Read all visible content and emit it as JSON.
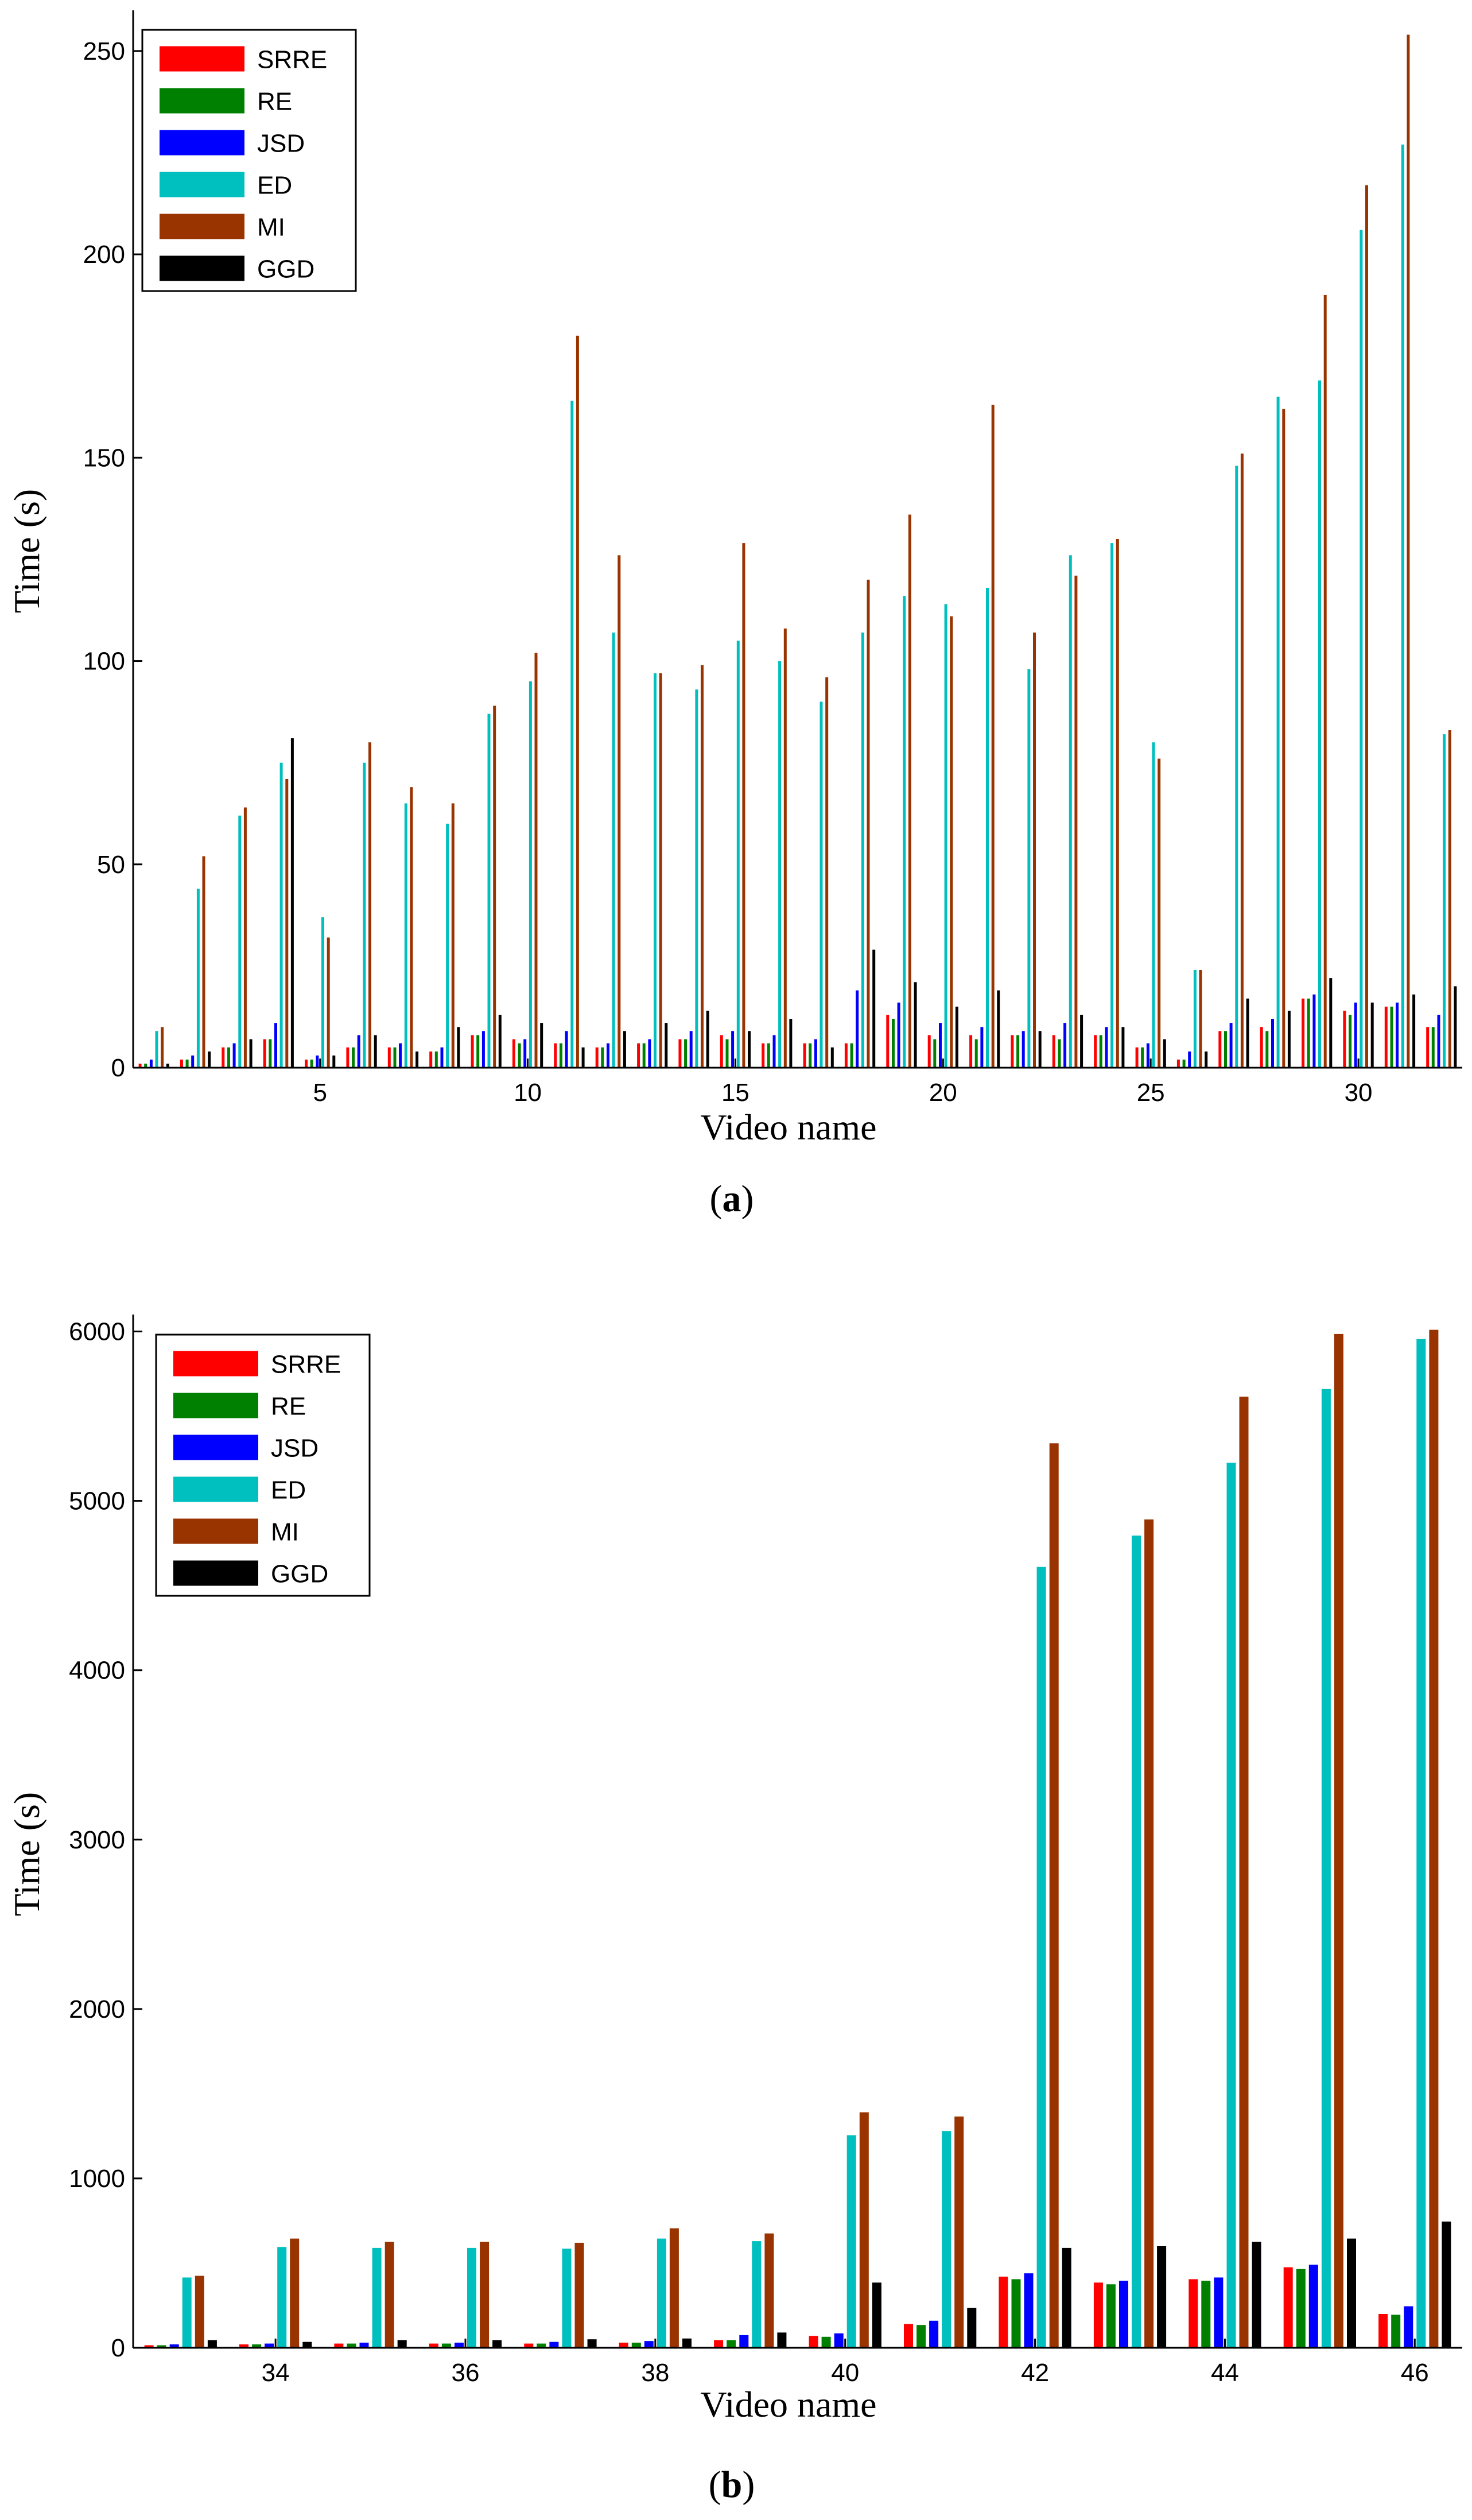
{
  "chart_data": [
    {
      "type": "bar",
      "panel_label": "a",
      "xlabel": "Video name",
      "ylabel": "Time (s)",
      "ylim": [
        0,
        260
      ],
      "yticks": [
        0,
        50,
        100,
        150,
        200,
        250
      ],
      "xticks": [
        5,
        10,
        15,
        20,
        25,
        30
      ],
      "legend_position": "top-left",
      "categories": [
        1,
        2,
        3,
        4,
        5,
        6,
        7,
        8,
        9,
        10,
        11,
        12,
        13,
        14,
        15,
        16,
        17,
        18,
        19,
        20,
        21,
        22,
        23,
        24,
        25,
        26,
        27,
        28,
        29,
        30,
        31,
        32
      ],
      "series": [
        {
          "name": "SRRE",
          "color": "#ff0000",
          "values": [
            1,
            2,
            5,
            7,
            2,
            5,
            5,
            4,
            8,
            7,
            6,
            5,
            6,
            7,
            8,
            6,
            6,
            6,
            13,
            8,
            8,
            8,
            8,
            8,
            5,
            2,
            9,
            10,
            17,
            14,
            15,
            10
          ]
        },
        {
          "name": "RE",
          "color": "#008000",
          "values": [
            1,
            2,
            5,
            7,
            2,
            5,
            5,
            4,
            8,
            6,
            6,
            5,
            6,
            7,
            7,
            6,
            6,
            6,
            12,
            7,
            7,
            8,
            7,
            8,
            5,
            2,
            9,
            9,
            17,
            13,
            15,
            10
          ]
        },
        {
          "name": "JSD",
          "color": "#0000ff",
          "values": [
            2,
            3,
            6,
            11,
            3,
            8,
            6,
            5,
            9,
            7,
            9,
            6,
            7,
            9,
            9,
            8,
            7,
            19,
            16,
            11,
            10,
            9,
            11,
            10,
            6,
            4,
            11,
            12,
            18,
            16,
            16,
            13
          ]
        },
        {
          "name": "ED",
          "color": "#00bfbf",
          "values": [
            9,
            44,
            62,
            75,
            37,
            75,
            65,
            60,
            87,
            95,
            164,
            107,
            97,
            93,
            105,
            100,
            90,
            107,
            116,
            114,
            118,
            98,
            126,
            129,
            80,
            24,
            148,
            165,
            169,
            206,
            227,
            82
          ]
        },
        {
          "name": "MI",
          "color": "#993300",
          "values": [
            10,
            52,
            64,
            71,
            32,
            80,
            69,
            65,
            89,
            102,
            180,
            126,
            97,
            99,
            129,
            108,
            96,
            120,
            136,
            111,
            163,
            107,
            121,
            130,
            76,
            24,
            151,
            162,
            190,
            217,
            254,
            83
          ]
        },
        {
          "name": "GGD",
          "color": "#000000",
          "values": [
            1,
            4,
            7,
            81,
            3,
            8,
            4,
            10,
            13,
            11,
            5,
            9,
            11,
            14,
            9,
            12,
            5,
            29,
            21,
            15,
            19,
            9,
            13,
            10,
            7,
            4,
            17,
            14,
            22,
            16,
            18,
            20
          ]
        }
      ]
    },
    {
      "type": "bar",
      "panel_label": "b",
      "xlabel": "Video name",
      "ylabel": "Time (s)",
      "ylim": [
        0,
        6100
      ],
      "yticks": [
        0,
        1000,
        2000,
        3000,
        4000,
        5000,
        6000
      ],
      "xticks": [
        34,
        36,
        38,
        40,
        42,
        44,
        46
      ],
      "legend_position": "top-left",
      "categories": [
        33,
        34,
        35,
        36,
        37,
        38,
        39,
        40,
        41,
        42,
        43,
        44,
        45,
        46
      ],
      "series": [
        {
          "name": "SRRE",
          "color": "#ff0000",
          "values": [
            15,
            20,
            25,
            25,
            25,
            30,
            45,
            70,
            140,
            420,
            385,
            405,
            475,
            200
          ]
        },
        {
          "name": "RE",
          "color": "#008000",
          "values": [
            15,
            20,
            25,
            25,
            25,
            30,
            45,
            65,
            135,
            405,
            375,
            395,
            465,
            195
          ]
        },
        {
          "name": "JSD",
          "color": "#0000ff",
          "values": [
            20,
            25,
            30,
            30,
            35,
            40,
            75,
            85,
            160,
            440,
            395,
            415,
            490,
            245
          ]
        },
        {
          "name": "ED",
          "color": "#00bfbf",
          "values": [
            415,
            595,
            590,
            590,
            585,
            645,
            630,
            1255,
            1280,
            4610,
            4795,
            5225,
            5660,
            5955
          ]
        },
        {
          "name": "MI",
          "color": "#993300",
          "values": [
            425,
            645,
            625,
            625,
            620,
            705,
            675,
            1390,
            1365,
            5340,
            4890,
            5615,
            5985,
            6010
          ]
        },
        {
          "name": "GGD",
          "color": "#000000",
          "values": [
            45,
            35,
            45,
            45,
            50,
            55,
            90,
            385,
            235,
            590,
            600,
            625,
            645,
            745
          ]
        }
      ]
    }
  ]
}
